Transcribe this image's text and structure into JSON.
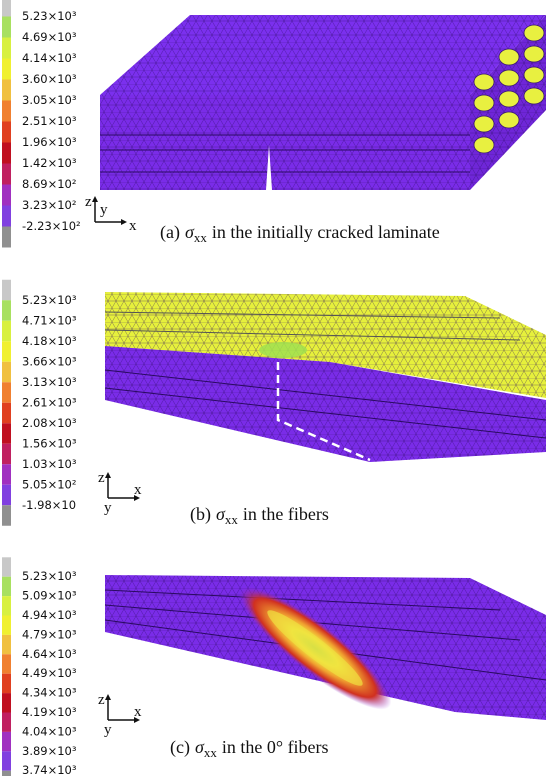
{
  "panels": [
    {
      "colorbar": {
        "labels": [
          "5.23×10³",
          "4.69×10³",
          "4.14×10³",
          "3.60×10³",
          "3.05×10³",
          "2.51×10³",
          "1.96×10³",
          "1.42×10³",
          "8.69×10²",
          "3.23×10²",
          "-2.23×10²"
        ]
      },
      "axes": [
        "z",
        "y",
        "x"
      ],
      "caption": {
        "prefix": "(a)",
        "symbol": "σ",
        "subscript": "xx",
        "text": "in the initially cracked laminate"
      }
    },
    {
      "colorbar": {
        "labels": [
          "5.23×10³",
          "4.71×10³",
          "4.18×10³",
          "3.66×10³",
          "3.13×10³",
          "2.61×10³",
          "2.08×10³",
          "1.56×10³",
          "1.03×10³",
          "5.05×10²",
          "-1.98×10"
        ]
      },
      "axes": [
        "z",
        "x",
        "y"
      ],
      "caption": {
        "prefix": "(b)",
        "symbol": "σ",
        "subscript": "xx",
        "text": "in the fibers"
      }
    },
    {
      "colorbar": {
        "labels": [
          "5.23×10³",
          "5.09×10³",
          "4.94×10³",
          "4.79×10³",
          "4.64×10³",
          "4.49×10³",
          "4.34×10³",
          "4.19×10³",
          "4.04×10³",
          "3.89×10³",
          "3.74×10³"
        ]
      },
      "axes": [
        "z",
        "x",
        "y"
      ],
      "caption": {
        "prefix": "(c)",
        "symbol": "σ",
        "subscript": "xx",
        "text": "in the 0° fibers"
      }
    }
  ]
}
